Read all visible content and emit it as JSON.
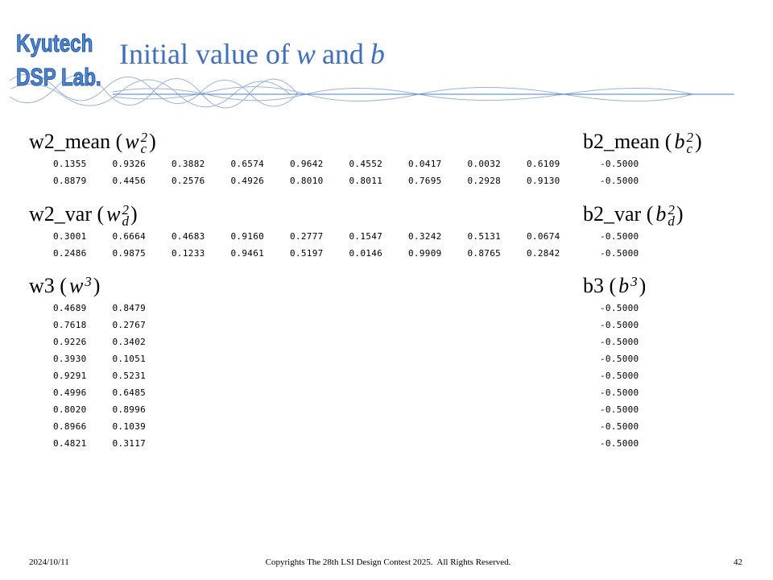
{
  "logo": {
    "line1": "Kyutech",
    "line2": "DSP Lab."
  },
  "header": {
    "title": [
      "Initial value of",
      "w",
      "and",
      "b"
    ]
  },
  "weights": [
    {
      "open": "w2_mean (",
      "symbol": "w",
      "sup": "2",
      "sub": "c",
      "close": ")",
      "rows": [
        [
          "0.1355",
          "0.9326",
          "0.3882",
          "0.6574",
          "0.9642",
          "0.4552",
          "0.0417",
          "0.0032",
          "0.6109"
        ],
        [
          "0.8879",
          "0.4456",
          "0.2576",
          "0.4926",
          "0.8010",
          "0.8011",
          "0.7695",
          "0.2928",
          "0.9130"
        ]
      ]
    },
    {
      "open": "w2_var (",
      "symbol": "w",
      "sup": "2",
      "sub": "d",
      "close": ")",
      "rows": [
        [
          "0.3001",
          "0.6664",
          "0.4683",
          "0.9160",
          "0.2777",
          "0.1547",
          "0.3242",
          "0.5131",
          "0.0674"
        ],
        [
          "0.2486",
          "0.9875",
          "0.1233",
          "0.9461",
          "0.5197",
          "0.0146",
          "0.9909",
          "0.8765",
          "0.2842"
        ]
      ]
    },
    {
      "open": "w3 (",
      "symbol": "w",
      "sup": "3",
      "sub": null,
      "close": ")",
      "rows": [
        [
          "0.4689",
          "0.8479"
        ],
        [
          "0.7618",
          "0.2767"
        ],
        [
          "0.9226",
          "0.3402"
        ],
        [
          "0.3930",
          "0.1051"
        ],
        [
          "0.9291",
          "0.5231"
        ],
        [
          "0.4996",
          "0.6485"
        ],
        [
          "0.8020",
          "0.8996"
        ],
        [
          "0.8966",
          "0.1039"
        ],
        [
          "0.4821",
          "0.3117"
        ]
      ]
    }
  ],
  "biases": [
    {
      "open": "b2_mean (",
      "symbol": "b",
      "sup": "2",
      "sub": "c",
      "close": ")",
      "rows": [
        [
          "-0.5000"
        ],
        [
          "-0.5000"
        ]
      ]
    },
    {
      "open": "b2_var (",
      "symbol": "b",
      "sup": "2",
      "sub": "d",
      "close": ")",
      "rows": [
        [
          "-0.5000"
        ],
        [
          "-0.5000"
        ]
      ]
    },
    {
      "open": "b3 (",
      "symbol": "b",
      "sup": "3",
      "sub": null,
      "close": ")",
      "rows": [
        [
          "-0.5000"
        ],
        [
          "-0.5000"
        ],
        [
          "-0.5000"
        ],
        [
          "-0.5000"
        ],
        [
          "-0.5000"
        ],
        [
          "-0.5000"
        ],
        [
          "-0.5000"
        ],
        [
          "-0.5000"
        ],
        [
          "-0.5000"
        ]
      ]
    }
  ],
  "footer": {
    "date": "2024/10/11",
    "copyright": "Copyrights The 28th LSI Design Contest 2025.  All Rights Reserved.",
    "page": "42"
  }
}
